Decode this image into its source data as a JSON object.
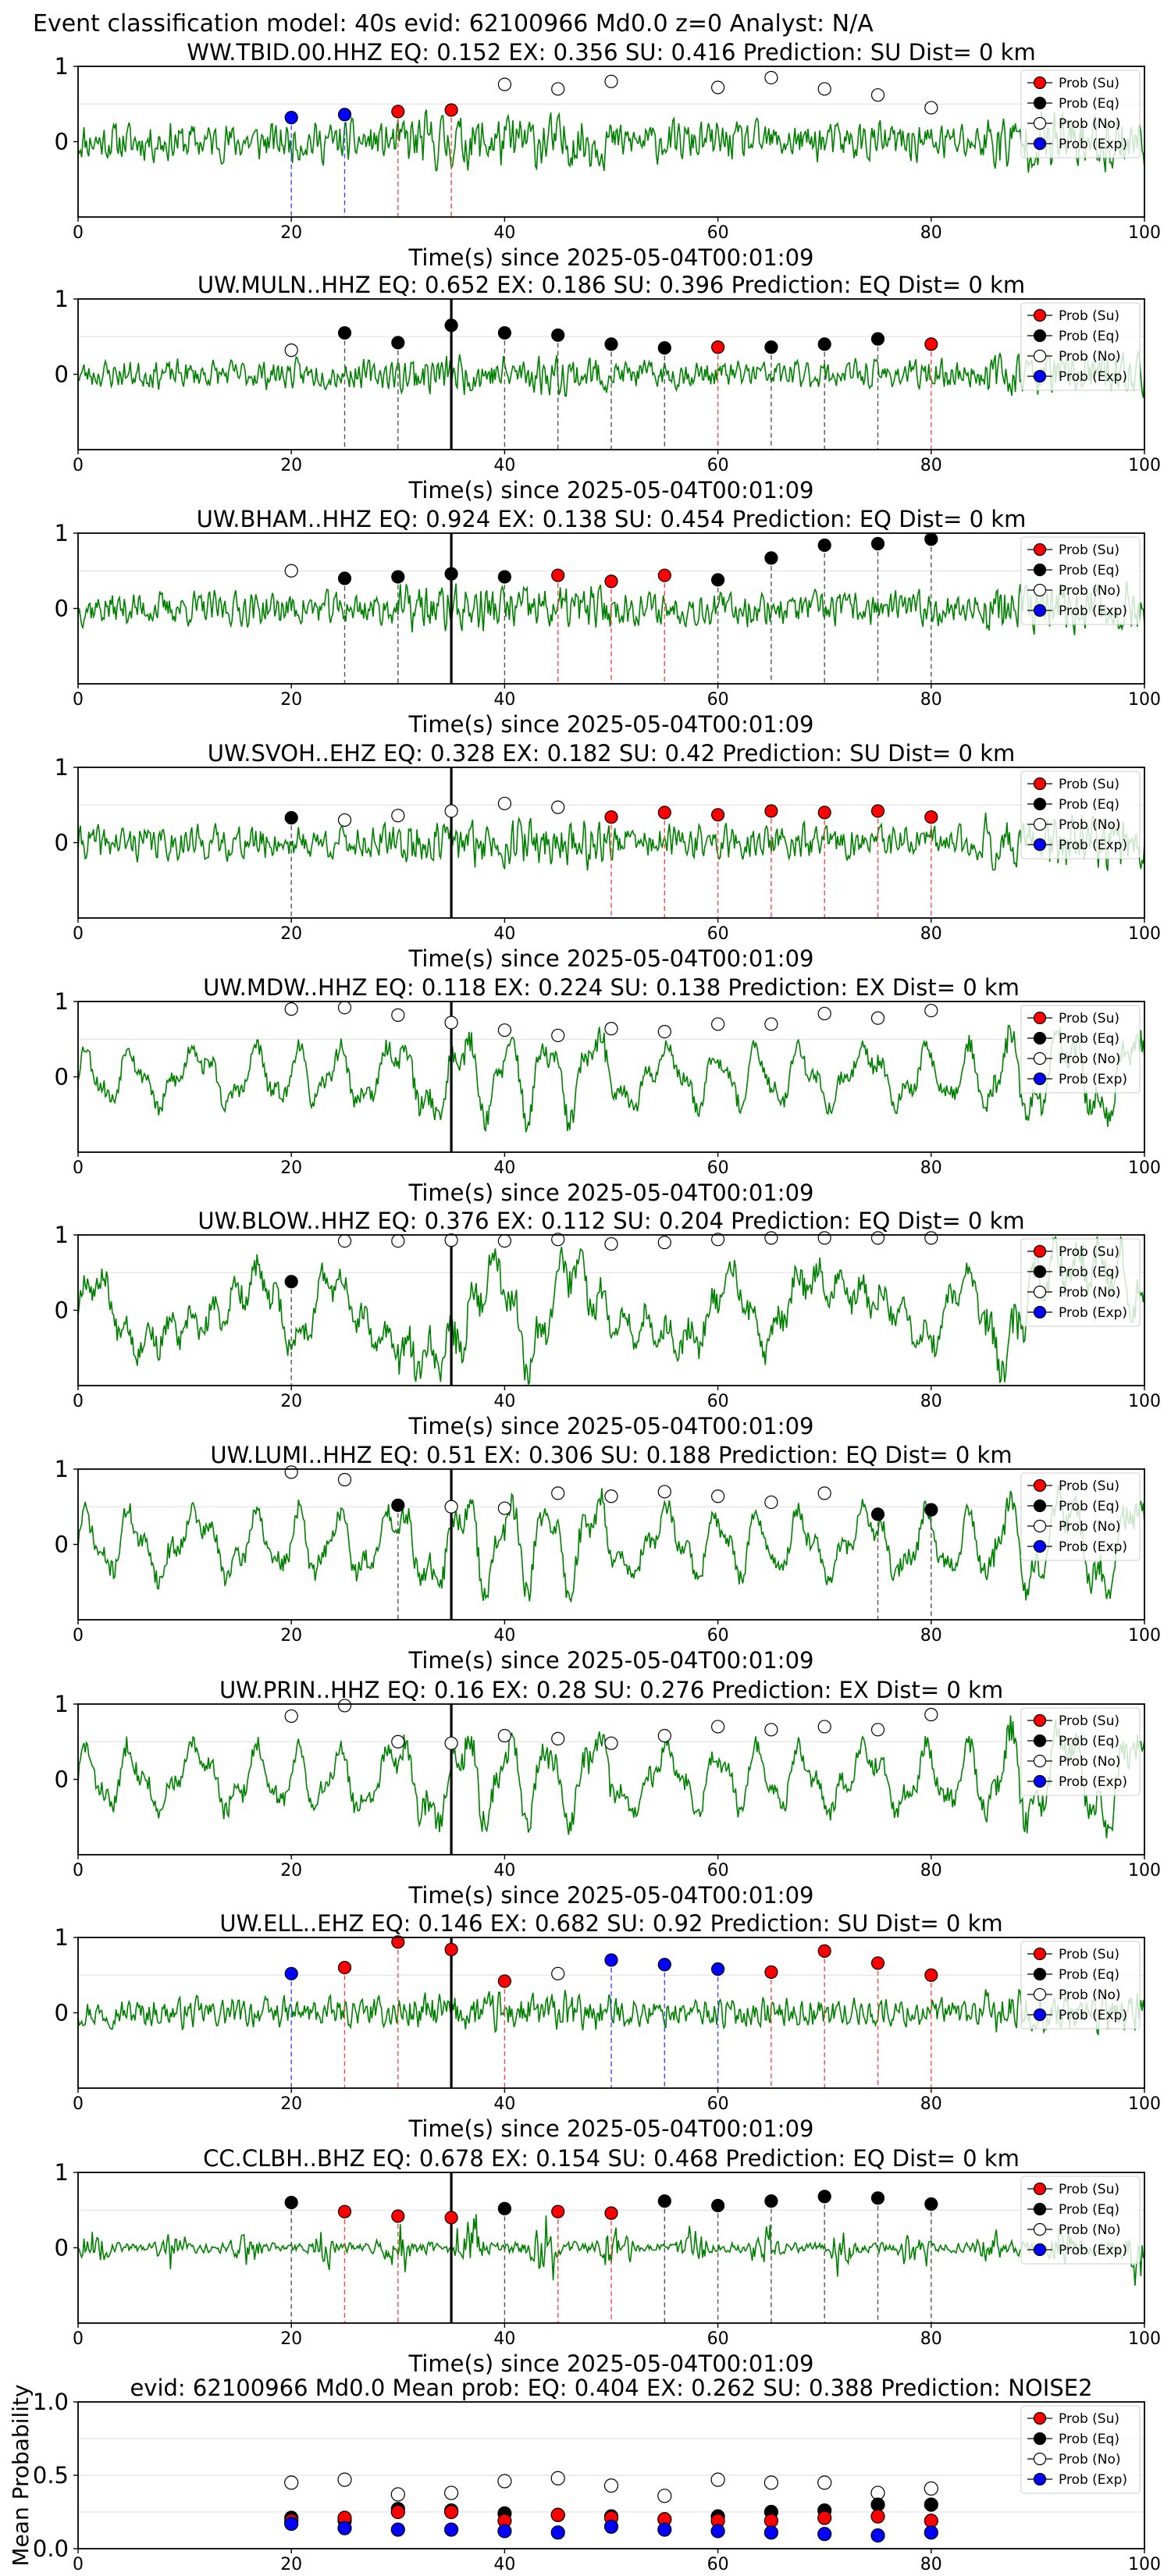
{
  "header": {
    "text": "Event classification model: 40s evid: 62100966 Md0.0 z=0 Analyst: N/A"
  },
  "legend_labels": [
    "Prob (Su)",
    "Prob (Eq)",
    "Prob (No)",
    "Prob (Exp)"
  ],
  "colors": {
    "su": "#ff0000",
    "eq": "#000000",
    "no": "#ffffff",
    "exp": "#0000ff",
    "wave": "#008000"
  },
  "chart_data": [
    {
      "type": "scatter",
      "title": "WW.TBID.00.HHZ   EQ: 0.152  EX: 0.356  SU: 0.416   Prediction: SU    Dist= 0 km",
      "xlabel": "Time(s) since 2025-05-04T00:01:09",
      "xticks": [
        "0",
        "20",
        "40",
        "60",
        "80",
        "100"
      ],
      "yticks": [
        "1",
        "0"
      ],
      "xlim": [
        0,
        100
      ],
      "ylim": [
        -1,
        1
      ],
      "t_ref": null,
      "points": [
        [
          20,
          0.32,
          "exp"
        ],
        [
          25,
          0.36,
          "exp"
        ],
        [
          30,
          0.4,
          "su"
        ],
        [
          35,
          0.42,
          "su"
        ],
        [
          40,
          0.76,
          "no"
        ],
        [
          45,
          0.7,
          "no"
        ],
        [
          50,
          0.8,
          "no"
        ],
        [
          60,
          0.72,
          "no"
        ],
        [
          65,
          0.85,
          "no"
        ],
        [
          70,
          0.7,
          "no"
        ],
        [
          75,
          0.62,
          "no"
        ],
        [
          80,
          0.45,
          "no"
        ]
      ],
      "wave": {
        "seed": 11,
        "style": "spiky",
        "amp": 0.35
      }
    },
    {
      "type": "scatter",
      "title": "UW.MULN..HHZ   EQ: 0.652  EX: 0.186  SU: 0.396   Prediction: EQ    Dist= 0 km",
      "xlabel": "Time(s) since 2025-05-04T00:01:09",
      "xticks": [
        "0",
        "20",
        "40",
        "60",
        "80",
        "100"
      ],
      "yticks": [
        "1",
        "0"
      ],
      "xlim": [
        0,
        100
      ],
      "ylim": [
        -1,
        1
      ],
      "t_ref": 35,
      "points": [
        [
          20,
          0.32,
          "no"
        ],
        [
          25,
          0.55,
          "eq"
        ],
        [
          30,
          0.42,
          "eq"
        ],
        [
          35,
          0.65,
          "eq"
        ],
        [
          40,
          0.55,
          "eq"
        ],
        [
          45,
          0.52,
          "eq"
        ],
        [
          50,
          0.4,
          "eq"
        ],
        [
          55,
          0.35,
          "eq"
        ],
        [
          60,
          0.36,
          "su"
        ],
        [
          65,
          0.36,
          "eq"
        ],
        [
          70,
          0.4,
          "eq"
        ],
        [
          75,
          0.47,
          "eq"
        ],
        [
          80,
          0.4,
          "su"
        ]
      ],
      "wave": {
        "seed": 23,
        "style": "spiky",
        "amp": 0.25
      }
    },
    {
      "type": "scatter",
      "title": "UW.BHAM..HHZ   EQ: 0.924  EX: 0.138  SU: 0.454   Prediction: EQ    Dist= 0 km",
      "xlabel": "Time(s) since 2025-05-04T00:01:09",
      "xticks": [
        "0",
        "20",
        "40",
        "60",
        "80",
        "100"
      ],
      "yticks": [
        "1",
        "0"
      ],
      "xlim": [
        0,
        100
      ],
      "ylim": [
        -1,
        1
      ],
      "t_ref": 35,
      "points": [
        [
          20,
          0.5,
          "no"
        ],
        [
          25,
          0.4,
          "eq"
        ],
        [
          30,
          0.42,
          "eq"
        ],
        [
          35,
          0.46,
          "eq"
        ],
        [
          40,
          0.42,
          "eq"
        ],
        [
          45,
          0.44,
          "su"
        ],
        [
          50,
          0.36,
          "su"
        ],
        [
          55,
          0.44,
          "su"
        ],
        [
          60,
          0.38,
          "eq"
        ],
        [
          65,
          0.67,
          "eq"
        ],
        [
          70,
          0.84,
          "eq"
        ],
        [
          75,
          0.86,
          "eq"
        ],
        [
          80,
          0.92,
          "eq"
        ]
      ],
      "wave": {
        "seed": 37,
        "style": "spiky",
        "amp": 0.3
      }
    },
    {
      "type": "scatter",
      "title": "UW.SVOH..EHZ   EQ: 0.328  EX: 0.182  SU: 0.42   Prediction: SU    Dist= 0 km",
      "xlabel": "Time(s) since 2025-05-04T00:01:09",
      "xticks": [
        "0",
        "20",
        "40",
        "60",
        "80",
        "100"
      ],
      "yticks": [
        "1",
        "0"
      ],
      "xlim": [
        0,
        100
      ],
      "ylim": [
        -1,
        1
      ],
      "t_ref": 35,
      "points": [
        [
          20,
          0.33,
          "eq"
        ],
        [
          25,
          0.3,
          "no"
        ],
        [
          30,
          0.36,
          "no"
        ],
        [
          35,
          0.42,
          "no"
        ],
        [
          40,
          0.52,
          "no"
        ],
        [
          45,
          0.47,
          "no"
        ],
        [
          50,
          0.34,
          "su"
        ],
        [
          55,
          0.4,
          "su"
        ],
        [
          60,
          0.37,
          "su"
        ],
        [
          65,
          0.42,
          "su"
        ],
        [
          70,
          0.4,
          "su"
        ],
        [
          75,
          0.42,
          "su"
        ],
        [
          80,
          0.34,
          "su"
        ]
      ],
      "wave": {
        "seed": 41,
        "style": "spiky",
        "amp": 0.3
      }
    },
    {
      "type": "scatter",
      "title": "UW.MDW..HHZ   EQ: 0.118  EX: 0.224  SU: 0.138   Prediction: EX    Dist= 0 km",
      "xlabel": "Time(s) since 2025-05-04T00:01:09",
      "xticks": [
        "0",
        "20",
        "40",
        "60",
        "80",
        "100"
      ],
      "yticks": [
        "1",
        "0"
      ],
      "xlim": [
        0,
        100
      ],
      "ylim": [
        -1,
        1
      ],
      "t_ref": 35,
      "points": [
        [
          20,
          0.9,
          "no"
        ],
        [
          25,
          0.92,
          "no"
        ],
        [
          30,
          0.82,
          "no"
        ],
        [
          35,
          0.72,
          "no"
        ],
        [
          40,
          0.62,
          "no"
        ],
        [
          45,
          0.55,
          "no"
        ],
        [
          50,
          0.64,
          "no"
        ],
        [
          55,
          0.6,
          "no"
        ],
        [
          60,
          0.7,
          "no"
        ],
        [
          65,
          0.7,
          "no"
        ],
        [
          70,
          0.84,
          "no"
        ],
        [
          75,
          0.78,
          "no"
        ],
        [
          80,
          0.88,
          "no"
        ]
      ],
      "wave": {
        "seed": 53,
        "style": "wavy",
        "amp": 0.45
      }
    },
    {
      "type": "scatter",
      "title": "UW.BLOW..HHZ   EQ: 0.376  EX: 0.112  SU: 0.204   Prediction: EQ    Dist= 0 km",
      "xlabel": "Time(s) since 2025-05-04T00:01:09",
      "xticks": [
        "0",
        "20",
        "40",
        "60",
        "80",
        "100"
      ],
      "yticks": [
        "1",
        "0"
      ],
      "xlim": [
        0,
        100
      ],
      "ylim": [
        -1,
        1
      ],
      "t_ref": 35,
      "points": [
        [
          20,
          0.38,
          "eq"
        ],
        [
          25,
          0.92,
          "no"
        ],
        [
          30,
          0.92,
          "no"
        ],
        [
          35,
          0.93,
          "no"
        ],
        [
          40,
          0.92,
          "no"
        ],
        [
          45,
          0.94,
          "no"
        ],
        [
          50,
          0.88,
          "no"
        ],
        [
          55,
          0.9,
          "no"
        ],
        [
          60,
          0.94,
          "no"
        ],
        [
          65,
          0.96,
          "no"
        ],
        [
          70,
          0.96,
          "no"
        ],
        [
          75,
          0.96,
          "no"
        ],
        [
          80,
          0.96,
          "no"
        ]
      ],
      "wave": {
        "seed": 67,
        "style": "swell",
        "amp": 0.6
      }
    },
    {
      "type": "scatter",
      "title": "UW.LUMI..HHZ   EQ: 0.51  EX: 0.306  SU: 0.188   Prediction: EQ    Dist= 0 km",
      "xlabel": "Time(s) since 2025-05-04T00:01:09",
      "xticks": [
        "0",
        "20",
        "40",
        "60",
        "80",
        "100"
      ],
      "yticks": [
        "1",
        "0"
      ],
      "xlim": [
        0,
        100
      ],
      "ylim": [
        -1,
        1
      ],
      "t_ref": 35,
      "points": [
        [
          20,
          0.96,
          "no"
        ],
        [
          25,
          0.86,
          "no"
        ],
        [
          30,
          0.52,
          "eq"
        ],
        [
          35,
          0.5,
          "no"
        ],
        [
          40,
          0.48,
          "no"
        ],
        [
          45,
          0.68,
          "no"
        ],
        [
          50,
          0.64,
          "no"
        ],
        [
          55,
          0.7,
          "no"
        ],
        [
          60,
          0.64,
          "no"
        ],
        [
          65,
          0.56,
          "no"
        ],
        [
          70,
          0.68,
          "no"
        ],
        [
          75,
          0.4,
          "eq"
        ],
        [
          80,
          0.46,
          "eq"
        ]
      ],
      "wave": {
        "seed": 71,
        "style": "wavy",
        "amp": 0.5
      }
    },
    {
      "type": "scatter",
      "title": "UW.PRIN..HHZ   EQ: 0.16  EX: 0.28  SU: 0.276   Prediction: EX    Dist= 0 km",
      "xlabel": "Time(s) since 2025-05-04T00:01:09",
      "xticks": [
        "0",
        "20",
        "40",
        "60",
        "80",
        "100"
      ],
      "yticks": [
        "1",
        "0"
      ],
      "xlim": [
        0,
        100
      ],
      "ylim": [
        -1,
        1
      ],
      "t_ref": 35,
      "points": [
        [
          20,
          0.84,
          "no"
        ],
        [
          25,
          0.98,
          "no"
        ],
        [
          30,
          0.5,
          "no"
        ],
        [
          35,
          0.48,
          "no"
        ],
        [
          40,
          0.58,
          "no"
        ],
        [
          45,
          0.54,
          "no"
        ],
        [
          50,
          0.48,
          "no"
        ],
        [
          55,
          0.58,
          "no"
        ],
        [
          60,
          0.7,
          "no"
        ],
        [
          65,
          0.66,
          "no"
        ],
        [
          70,
          0.7,
          "no"
        ],
        [
          75,
          0.66,
          "no"
        ],
        [
          80,
          0.86,
          "no"
        ]
      ],
      "wave": {
        "seed": 83,
        "style": "wavy",
        "amp": 0.5
      }
    },
    {
      "type": "scatter",
      "title": "UW.ELL..EHZ   EQ: 0.146  EX: 0.682  SU: 0.92   Prediction: SU    Dist= 0 km",
      "xlabel": "Time(s) since 2025-05-04T00:01:09",
      "xticks": [
        "0",
        "20",
        "40",
        "60",
        "80",
        "100"
      ],
      "yticks": [
        "1",
        "0"
      ],
      "xlim": [
        0,
        100
      ],
      "ylim": [
        -1,
        1
      ],
      "t_ref": 35,
      "points": [
        [
          20,
          0.52,
          "exp"
        ],
        [
          25,
          0.6,
          "su"
        ],
        [
          30,
          0.94,
          "su"
        ],
        [
          35,
          0.84,
          "su"
        ],
        [
          40,
          0.42,
          "su"
        ],
        [
          45,
          0.52,
          "no"
        ],
        [
          50,
          0.7,
          "exp"
        ],
        [
          55,
          0.64,
          "exp"
        ],
        [
          60,
          0.58,
          "exp"
        ],
        [
          65,
          0.54,
          "su"
        ],
        [
          70,
          0.82,
          "su"
        ],
        [
          75,
          0.66,
          "su"
        ],
        [
          80,
          0.5,
          "su"
        ]
      ],
      "wave": {
        "seed": 97,
        "style": "spiky",
        "amp": 0.25
      }
    },
    {
      "type": "scatter",
      "title": "CC.CLBH..BHZ   EQ: 0.678  EX: 0.154  SU: 0.468   Prediction: EQ    Dist= 0 km",
      "xlabel": "Time(s) since 2025-05-04T00:01:09",
      "xticks": [
        "0",
        "20",
        "40",
        "60",
        "80",
        "100"
      ],
      "yticks": [
        "1",
        "0"
      ],
      "xlim": [
        0,
        100
      ],
      "ylim": [
        -1,
        1
      ],
      "t_ref": 35,
      "points": [
        [
          20,
          0.6,
          "eq"
        ],
        [
          25,
          0.48,
          "su"
        ],
        [
          30,
          0.42,
          "su"
        ],
        [
          35,
          0.4,
          "su"
        ],
        [
          40,
          0.52,
          "eq"
        ],
        [
          45,
          0.48,
          "su"
        ],
        [
          50,
          0.46,
          "su"
        ],
        [
          55,
          0.62,
          "eq"
        ],
        [
          60,
          0.56,
          "eq"
        ],
        [
          65,
          0.62,
          "eq"
        ],
        [
          70,
          0.68,
          "eq"
        ],
        [
          75,
          0.66,
          "eq"
        ],
        [
          80,
          0.58,
          "eq"
        ]
      ],
      "wave": {
        "seed": 101,
        "style": "burst",
        "amp": 0.25
      }
    },
    {
      "type": "scatter",
      "title": "evid: 62100966  Md0.0   Mean prob:   EQ: 0.404  EX: 0.262  SU: 0.388   Prediction: NOISE2",
      "xlabel": "",
      "ylabel": "Mean Probability",
      "xticks": [
        "0",
        "20",
        "40",
        "60",
        "80",
        "100"
      ],
      "yticks": [
        "1.0",
        "0.5",
        "0.0"
      ],
      "xlim": [
        0,
        100
      ],
      "ylim": [
        0,
        1
      ],
      "series": [
        {
          "key": "no",
          "x": [
            20,
            25,
            30,
            35,
            40,
            45,
            50,
            55,
            60,
            65,
            70,
            75,
            80
          ],
          "y": [
            0.45,
            0.47,
            0.37,
            0.38,
            0.46,
            0.48,
            0.43,
            0.36,
            0.47,
            0.45,
            0.45,
            0.38,
            0.41
          ]
        },
        {
          "key": "eq",
          "x": [
            20,
            25,
            30,
            35,
            40,
            45,
            50,
            55,
            60,
            65,
            70,
            75,
            80
          ],
          "y": [
            0.21,
            0.19,
            0.27,
            0.26,
            0.24,
            0.23,
            0.22,
            0.2,
            0.22,
            0.25,
            0.26,
            0.3,
            0.3
          ]
        },
        {
          "key": "su",
          "x": [
            20,
            25,
            30,
            35,
            40,
            45,
            50,
            55,
            60,
            65,
            70,
            75,
            80
          ],
          "y": [
            0.19,
            0.21,
            0.25,
            0.25,
            0.19,
            0.23,
            0.21,
            0.2,
            0.19,
            0.19,
            0.21,
            0.22,
            0.19
          ]
        },
        {
          "key": "exp",
          "x": [
            20,
            25,
            30,
            35,
            40,
            45,
            50,
            55,
            60,
            65,
            70,
            75,
            80
          ],
          "y": [
            0.17,
            0.14,
            0.13,
            0.13,
            0.12,
            0.11,
            0.15,
            0.13,
            0.12,
            0.11,
            0.1,
            0.09,
            0.11
          ]
        }
      ]
    }
  ]
}
